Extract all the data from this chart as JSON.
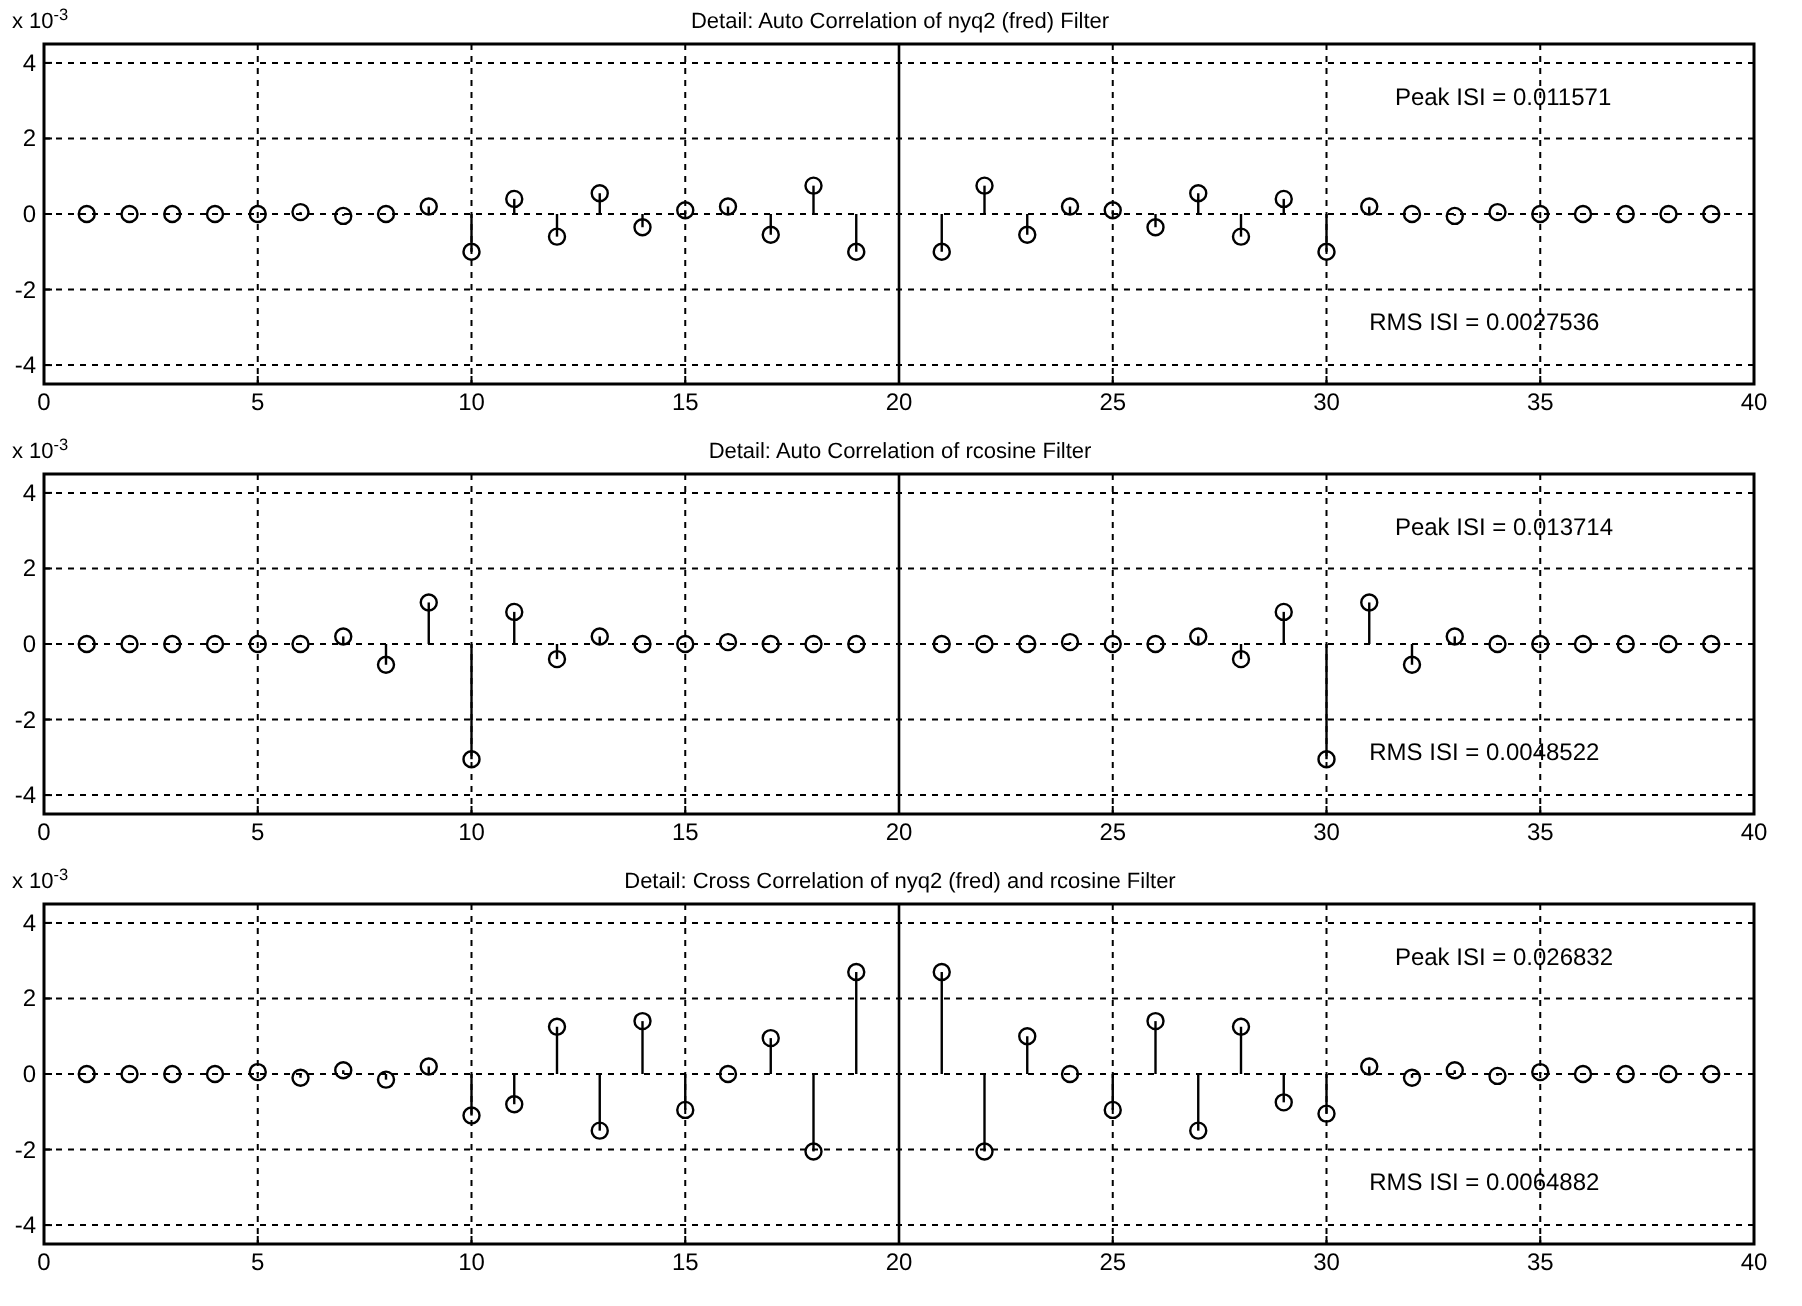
{
  "chart_data": [
    {
      "type": "lollipop",
      "title": "Detail: Auto Correlation of nyq2 (fred) Filter",
      "marker": "circle",
      "grid": true,
      "xlim": [
        0,
        40
      ],
      "xticks": [
        0,
        5,
        10,
        15,
        20,
        25,
        30,
        35,
        40
      ],
      "ylim": [
        -4.5,
        4.5
      ],
      "yticks": [
        -4,
        -2,
        0,
        2,
        4
      ],
      "ref_lines": [
        {
          "axis": "x",
          "value": 20,
          "color": "#000000"
        }
      ],
      "annotations": [
        "x 10$^{-3}$",
        "Peak ISI = 0.011571",
        "RMS ISI = 0.0027536"
      ],
      "series": [
        {
          "color": "#000000",
          "x": [
            1,
            2,
            3,
            4,
            5,
            6,
            7,
            8,
            9,
            10,
            11,
            12,
            13,
            14,
            15,
            16,
            17,
            18,
            19,
            21,
            22,
            23,
            24,
            25,
            26,
            27,
            28,
            29,
            30,
            31,
            32,
            33,
            34,
            35,
            36,
            37,
            38,
            39
          ],
          "values": [
            0,
            0,
            0,
            0,
            0,
            0.05,
            -0.05,
            0,
            0.2,
            -1.0,
            0.4,
            -0.6,
            0.55,
            -0.35,
            0.1,
            0.2,
            -0.55,
            0.75,
            -1.0,
            -1.0,
            0.75,
            -0.55,
            0.2,
            0.1,
            -0.35,
            0.55,
            -0.6,
            0.4,
            -1.0,
            0.2,
            0,
            -0.05,
            0.05,
            0,
            0,
            0,
            0,
            0
          ]
        }
      ]
    },
    {
      "type": "lollipop",
      "title": "Detail: Auto Correlation of rcosine Filter",
      "marker": "circle",
      "grid": true,
      "xlim": [
        0,
        40
      ],
      "xticks": [
        0,
        5,
        10,
        15,
        20,
        25,
        30,
        35,
        40
      ],
      "ylim": [
        -4.5,
        4.5
      ],
      "yticks": [
        -4,
        -2,
        0,
        2,
        4
      ],
      "ref_lines": [
        {
          "axis": "x",
          "value": 20,
          "color": "#000000"
        }
      ],
      "annotations": [
        "x 10$^{-3}$",
        "Peak ISI = 0.013714",
        "RMS ISI = 0.0048522"
      ],
      "series": [
        {
          "color": "#000000",
          "x": [
            1,
            2,
            3,
            4,
            5,
            6,
            7,
            8,
            9,
            10,
            11,
            12,
            13,
            14,
            15,
            16,
            17,
            18,
            19,
            21,
            22,
            23,
            24,
            25,
            26,
            27,
            28,
            29,
            30,
            31,
            32,
            33,
            34,
            35,
            36,
            37,
            38,
            39
          ],
          "values": [
            0,
            0,
            0,
            0,
            0,
            0,
            0.2,
            -0.55,
            1.1,
            -3.05,
            0.85,
            -0.4,
            0.2,
            0,
            0,
            0.05,
            0,
            0,
            0,
            0,
            0,
            0,
            0.05,
            0,
            0,
            0.2,
            -0.4,
            0.85,
            -3.05,
            1.1,
            -0.55,
            0.2,
            0,
            0,
            0,
            0,
            0,
            0
          ]
        }
      ]
    },
    {
      "type": "lollipop",
      "title": "Detail: Cross Correlation of nyq2 (fred) and rcosine Filter",
      "marker": "circle",
      "grid": true,
      "xlim": [
        0,
        40
      ],
      "xticks": [
        0,
        5,
        10,
        15,
        20,
        25,
        30,
        35,
        40
      ],
      "ylim": [
        -4.5,
        4.5
      ],
      "yticks": [
        -4,
        -2,
        0,
        2,
        4
      ],
      "ref_lines": [
        {
          "axis": "x",
          "value": 20,
          "color": "#000000"
        }
      ],
      "annotations": [
        "x 10$^{-3}$",
        "Peak ISI = 0.026832",
        "RMS ISI = 0.0064882"
      ],
      "series": [
        {
          "color": "#000000",
          "x": [
            1,
            2,
            3,
            4,
            5,
            6,
            7,
            8,
            9,
            10,
            11,
            12,
            13,
            14,
            15,
            16,
            17,
            18,
            19,
            21,
            22,
            23,
            24,
            25,
            26,
            27,
            28,
            29,
            30,
            31,
            32,
            33,
            34,
            35,
            36,
            37,
            38,
            39
          ],
          "values": [
            0,
            0,
            0,
            0,
            0.05,
            -0.1,
            0.1,
            -0.15,
            0.2,
            -1.1,
            -0.8,
            1.25,
            -1.5,
            1.4,
            -0.95,
            0,
            0.95,
            -2.05,
            2.7,
            2.7,
            -2.05,
            1.0,
            0,
            -0.95,
            1.4,
            -1.5,
            1.25,
            -0.75,
            -1.05,
            0.2,
            -0.1,
            0.1,
            -0.05,
            0.05,
            0,
            0,
            0,
            0
          ]
        }
      ]
    }
  ]
}
